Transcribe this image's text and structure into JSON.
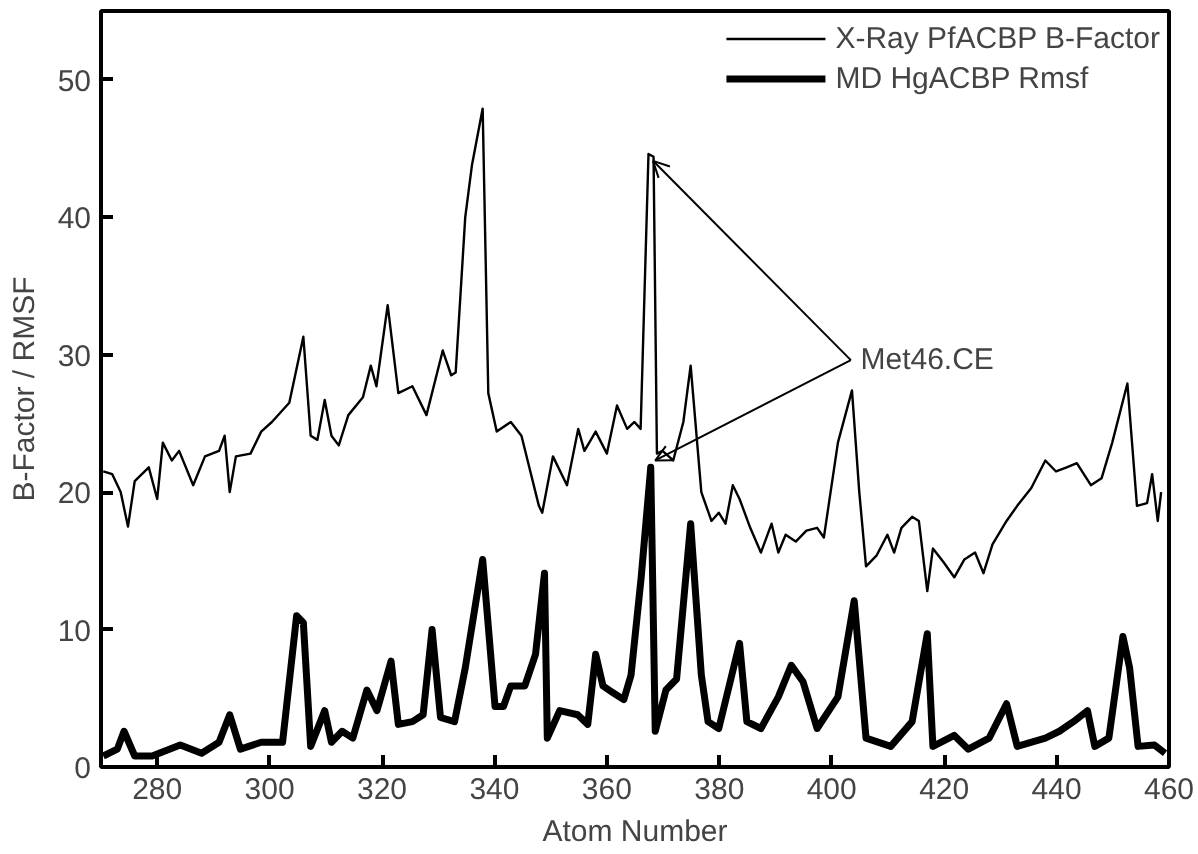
{
  "chart_data": {
    "type": "line",
    "xlabel": "Atom Number",
    "ylabel": "B-Factor / RMSF",
    "xlim": [
      270,
      460
    ],
    "ylim": [
      0,
      55
    ],
    "xticks": [
      280,
      300,
      320,
      340,
      360,
      380,
      400,
      420,
      440,
      460
    ],
    "yticks": [
      0,
      10,
      20,
      30,
      40,
      50
    ],
    "grid": false,
    "legend": "top right",
    "marker": "none",
    "line_style": "solid",
    "annotations": [
      {
        "text": "Met46.CE",
        "x": 367.4,
        "y": 44.6
      }
    ],
    "series": [
      {
        "name": "X-Ray PfACBP B-Factor",
        "color": "#000000",
        "x": [
          270.4,
          272,
          273.5,
          274.8,
          276,
          278.5,
          280,
          281,
          282.6,
          283.9,
          286.4,
          288.5,
          291,
          292,
          292.9,
          294,
          296.6,
          298.5,
          300.4,
          303.5,
          306,
          307.3,
          308.5,
          309.8,
          311,
          312.3,
          314,
          316.6,
          318,
          319,
          321,
          322.9,
          325.4,
          327.9,
          330.8,
          332.3,
          333.1,
          334.8,
          336,
          337.9,
          338.9,
          340.4,
          342.9,
          344.8,
          347.9,
          348.5,
          350.4,
          352.9,
          354.9,
          356,
          358,
          360,
          361.8,
          363.6,
          364.9,
          366,
          367.4,
          368.3,
          368.9,
          369.9,
          371.8,
          373.6,
          374.9,
          376.8,
          378.6,
          379.9,
          381.1,
          382.4,
          383.6,
          385.5,
          387.4,
          389.3,
          390.5,
          391.8,
          393.6,
          395.5,
          397.4,
          398.6,
          401.1,
          403.6,
          404.9,
          406.1,
          408,
          409.9,
          411.1,
          412.4,
          414.3,
          415.5,
          417,
          418,
          419.9,
          421.8,
          423.6,
          425.5,
          427,
          428.6,
          431.1,
          433,
          435.5,
          438,
          439.9,
          441.8,
          443.6,
          446.1,
          448,
          449.9,
          452.6,
          454.3,
          456.1,
          457,
          458,
          458.6
        ],
        "values": [
          21.5,
          21.3,
          20,
          17.5,
          20.8,
          21.8,
          19.5,
          23.6,
          22.3,
          23,
          20.5,
          22.6,
          23,
          24.1,
          20,
          22.6,
          22.8,
          24.4,
          25.1,
          26.5,
          31.3,
          24.1,
          23.8,
          26.7,
          24.1,
          23.4,
          25.6,
          26.9,
          29.2,
          27.7,
          33.6,
          27.2,
          27.7,
          25.6,
          30.3,
          28.5,
          28.7,
          40,
          43.8,
          47.9,
          27.2,
          24.4,
          25.1,
          24.1,
          19,
          18.5,
          22.6,
          20.5,
          24.6,
          23,
          24.4,
          22.8,
          26.3,
          24.6,
          25.1,
          24.6,
          44.6,
          44.4,
          22.8,
          23,
          22.3,
          25.1,
          29.2,
          20,
          17.9,
          18.5,
          17.7,
          20.5,
          19.5,
          17.4,
          15.6,
          17.7,
          15.6,
          16.9,
          16.4,
          17.2,
          17.4,
          16.7,
          23.6,
          27.4,
          20,
          14.6,
          15.4,
          16.9,
          15.6,
          17.4,
          18.2,
          17.9,
          12.8,
          15.9,
          14.9,
          13.8,
          15.1,
          15.6,
          14.1,
          16.2,
          17.9,
          19,
          20.3,
          22.3,
          21.5,
          21.8,
          22.1,
          20.5,
          21,
          23.6,
          27.9,
          19,
          19.2,
          21.3,
          17.9,
          20
        ]
      },
      {
        "name": "MD HgACBP Rmsf",
        "color": "#000000",
        "x": [
          270.4,
          272.9,
          274.1,
          276,
          279.1,
          284.1,
          287.9,
          291,
          292.9,
          294.8,
          298.5,
          302.3,
          304.8,
          306,
          307.3,
          309.8,
          311,
          312.9,
          314.8,
          317.3,
          319.1,
          321.6,
          322.9,
          325.4,
          327.3,
          328.9,
          330.4,
          332.9,
          334.8,
          337.9,
          340.1,
          341.6,
          342.9,
          345.4,
          347.3,
          348.9,
          349.4,
          351.6,
          354.8,
          356.6,
          358,
          359.3,
          361.1,
          363,
          364.3,
          366.1,
          367.8,
          368.6,
          370.5,
          372.4,
          374.9,
          376.8,
          378,
          379.9,
          383.6,
          384.9,
          387.4,
          390.5,
          392.8,
          394.9,
          397.4,
          401.1,
          404,
          406.1,
          410.5,
          414.3,
          417,
          418,
          421.8,
          424.3,
          428,
          431.1,
          433,
          438,
          440.5,
          443,
          445.5,
          446.8,
          449.3,
          451.8,
          453,
          454.5,
          457.4,
          459.3
        ],
        "values": [
          0.8,
          1.3,
          2.6,
          0.8,
          0.8,
          1.6,
          1,
          1.8,
          3.8,
          1.3,
          1.8,
          1.8,
          11,
          10.5,
          1.5,
          4.1,
          1.8,
          2.6,
          2.1,
          5.6,
          4.1,
          7.7,
          3.1,
          3.3,
          3.8,
          10,
          3.6,
          3.3,
          7.2,
          15.1,
          4.4,
          4.4,
          5.9,
          5.9,
          8.2,
          14.1,
          2.1,
          4.1,
          3.8,
          3.1,
          8.2,
          5.9,
          5.4,
          4.9,
          6.7,
          13.8,
          21.8,
          2.6,
          5.6,
          6.4,
          17.7,
          6.7,
          3.3,
          2.8,
          9,
          3.3,
          2.8,
          5.1,
          7.4,
          6.2,
          2.8,
          5.1,
          12.1,
          2.1,
          1.5,
          3.3,
          9.7,
          1.5,
          2.3,
          1.3,
          2.1,
          4.6,
          1.5,
          2.1,
          2.6,
          3.3,
          4.1,
          1.5,
          2.1,
          9.5,
          7.2,
          1.5,
          1.6,
          1
        ]
      }
    ]
  }
}
